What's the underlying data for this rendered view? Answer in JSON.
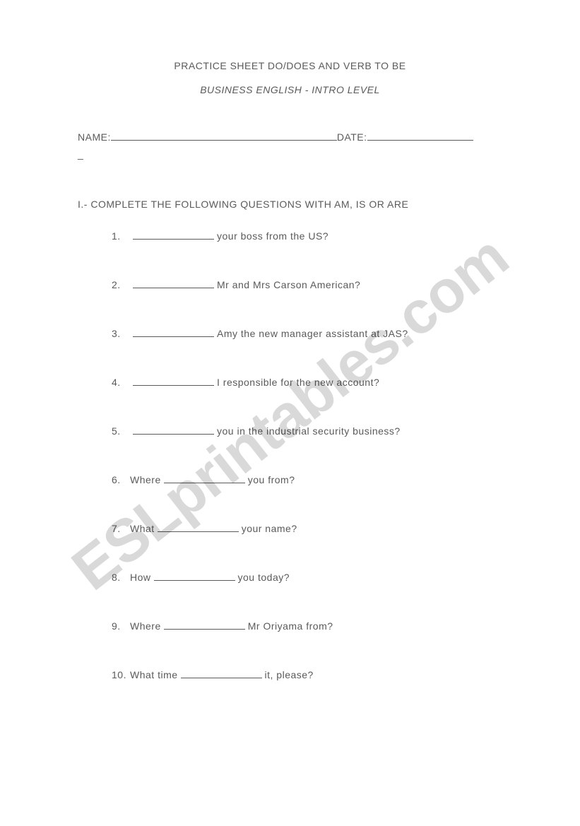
{
  "header": {
    "title": "PRACTICE SHEET DO/DOES AND VERB TO BE",
    "subtitle": "BUSINESS ENGLISH -  INTRO LEVEL"
  },
  "fields": {
    "name_label": "NAME:",
    "date_label": "DATE:",
    "stray_char": "_"
  },
  "instruction": "I.- COMPLETE THE FOLLOWING QUESTIONS WITH AM, IS  OR ARE",
  "questions": [
    {
      "num": "1.",
      "before": "",
      "after": " your boss from the US?"
    },
    {
      "num": "2.",
      "before": "",
      "after": " Mr and Mrs Carson American?"
    },
    {
      "num": "3.",
      "before": "",
      "after": " Amy the new manager assistant at JAS?"
    },
    {
      "num": "4.",
      "before": "",
      "after": " I responsible for the new account?"
    },
    {
      "num": "5.",
      "before": "",
      "after": " you in the industrial security business?"
    },
    {
      "num": "6.",
      "before": "Where ",
      "after": " you from?"
    },
    {
      "num": "7.",
      "before": "What ",
      "after": " your name?"
    },
    {
      "num": "8.",
      "before": "How ",
      "after": " you today?"
    },
    {
      "num": "9.",
      "before": "Where ",
      "after": " Mr Oriyama from?"
    },
    {
      "num": "10.",
      "before": "What time ",
      "after": " it, please?"
    }
  ],
  "watermark": "ESLprintables.com"
}
